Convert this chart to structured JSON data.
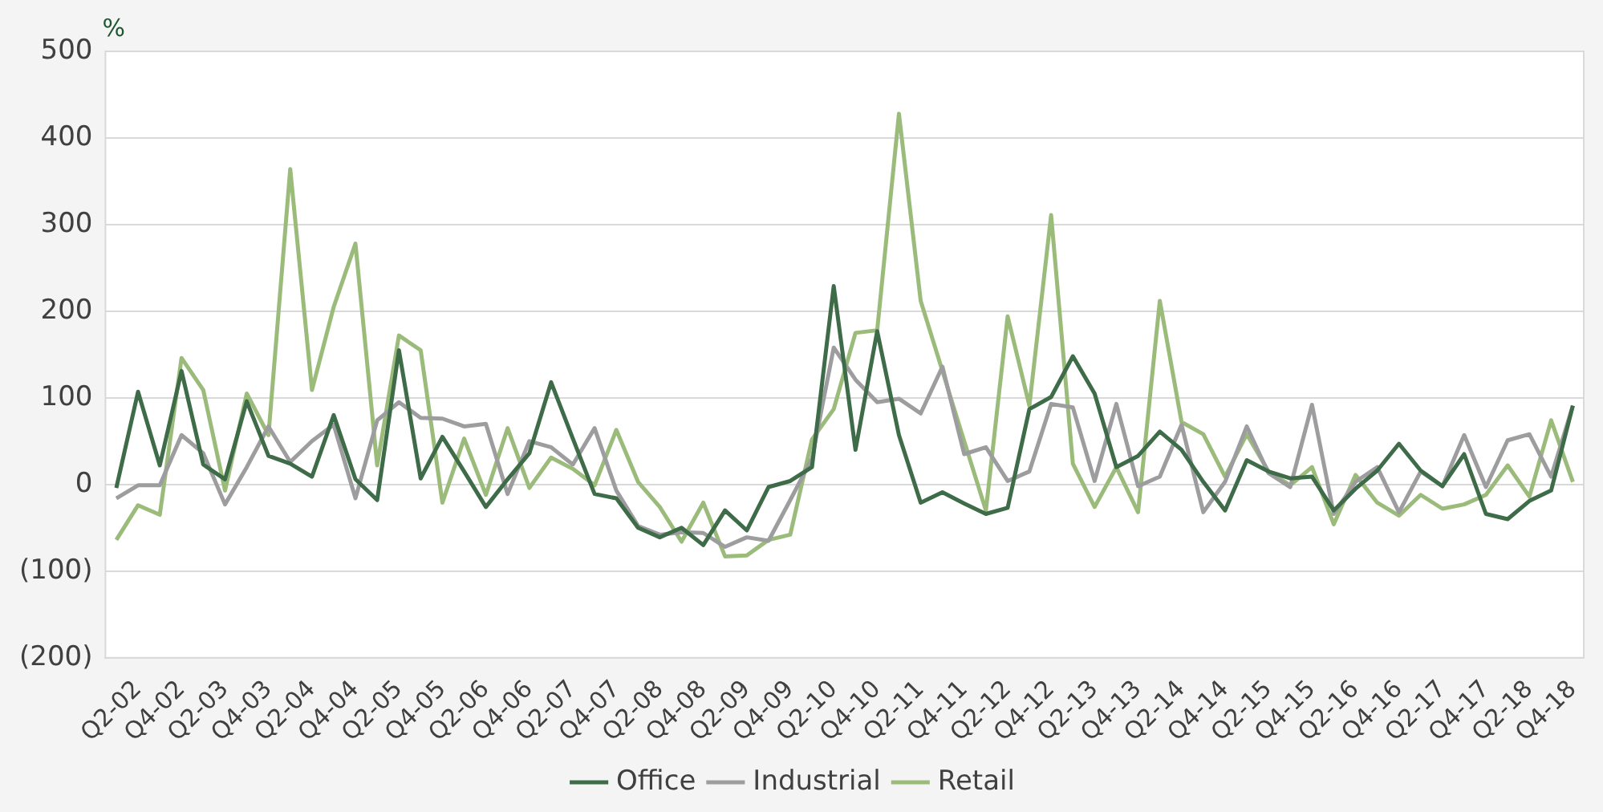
{
  "chart_data": {
    "type": "line",
    "ylabel": "%",
    "categories": [
      null,
      "Q2-02",
      null,
      "Q4-02",
      null,
      "Q2-03",
      null,
      "Q4-03",
      null,
      "Q2-04",
      null,
      "Q4-04",
      null,
      "Q2-05",
      null,
      "Q4-05",
      null,
      "Q2-06",
      null,
      "Q4-06",
      null,
      "Q2-07",
      null,
      "Q4-07",
      null,
      "Q2-08",
      null,
      "Q4-08",
      null,
      "Q2-09",
      null,
      "Q4-09",
      null,
      "Q2-10",
      null,
      "Q4-10",
      null,
      "Q2-11",
      null,
      "Q4-11",
      null,
      "Q2-12",
      null,
      "Q4-12",
      null,
      "Q2-13",
      null,
      "Q4-13",
      null,
      "Q2-14",
      null,
      "Q4-14",
      null,
      "Q2-15",
      null,
      "Q4-15",
      null,
      "Q2-16",
      null,
      "Q4-16",
      null,
      "Q2-17",
      null,
      "Q4-17",
      null,
      "Q2-18",
      null,
      "Q4-18"
    ],
    "series": [
      {
        "name": "Office",
        "color": "#3e6b48",
        "values": [
          -4,
          107,
          22,
          131,
          23,
          6,
          96,
          33,
          24,
          9,
          80,
          6,
          -18,
          155,
          7,
          55,
          15,
          -26,
          6,
          36,
          118,
          53,
          -11,
          -16,
          -50,
          -61,
          -50,
          -70,
          -30,
          -53,
          -3,
          4,
          20,
          229,
          40,
          177,
          57,
          -21,
          -9,
          -22,
          -34,
          -27,
          87,
          101,
          148,
          105,
          20,
          33,
          61,
          40,
          3,
          -30,
          28,
          15,
          7,
          9,
          -30,
          -5,
          16,
          47,
          16,
          -2,
          35,
          -34,
          -40,
          -19,
          -7,
          91
        ]
      },
      {
        "name": "Industrial",
        "color": "#9d9d9f",
        "values": [
          -16,
          -1,
          -1,
          57,
          36,
          -23,
          20,
          67,
          26,
          50,
          69,
          -16,
          74,
          95,
          77,
          76,
          67,
          70,
          -11,
          50,
          43,
          23,
          65,
          -7,
          -48,
          -58,
          -55,
          -56,
          -72,
          -61,
          -65,
          -18,
          30,
          158,
          121,
          95,
          99,
          82,
          136,
          35,
          43,
          4,
          15,
          93,
          89,
          4,
          93,
          -2,
          9,
          69,
          -32,
          3,
          67,
          13,
          -3,
          92,
          -34,
          3,
          20,
          -32,
          15,
          -2,
          57,
          -3,
          51,
          58,
          9,
          91
        ]
      },
      {
        "name": "Retail",
        "color": "#9bbb7a",
        "values": [
          -64,
          -24,
          -35,
          146,
          109,
          -7,
          105,
          57,
          364,
          109,
          205,
          278,
          22,
          172,
          155,
          -21,
          53,
          -12,
          65,
          -4,
          31,
          18,
          -1,
          63,
          3,
          -26,
          -66,
          -21,
          -83,
          -82,
          -64,
          -58,
          52,
          87,
          175,
          178,
          428,
          212,
          131,
          50,
          -30,
          194,
          91,
          311,
          24,
          -26,
          20,
          -32,
          212,
          72,
          58,
          9,
          58,
          15,
          -1,
          20,
          -46,
          11,
          -21,
          -36,
          -12,
          -28,
          -23,
          -12,
          22,
          -14,
          74,
          3
        ]
      }
    ],
    "ylim": [
      -200,
      500
    ],
    "yticks": [
      {
        "value": -200,
        "label": "(200)"
      },
      {
        "value": -100,
        "label": "(100)"
      },
      0,
      100,
      200,
      300,
      400,
      500
    ],
    "grid": "y",
    "legend": "bottom",
    "line_style": "solid",
    "marker": "none"
  }
}
